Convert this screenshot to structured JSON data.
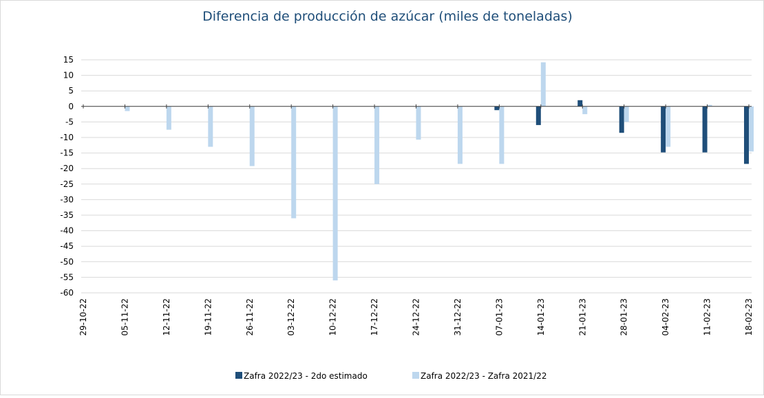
{
  "chart_data": {
    "type": "bar",
    "title": "Diferencia de producción de azúcar (miles de toneladas)",
    "categories": [
      "29-10-22",
      "05-11-22",
      "12-11-22",
      "19-11-22",
      "26-11-22",
      "03-12-22",
      "10-12-22",
      "17-12-22",
      "24-12-22",
      "31-12-22",
      "07-01-23",
      "14-01-23",
      "21-01-23",
      "28-01-23",
      "04-02-23",
      "11-02-23",
      "18-02-23"
    ],
    "series": [
      {
        "name": "Zafra 2022/23 - 2do estimado",
        "color": "#1f4e79",
        "values": [
          0,
          0,
          0,
          0,
          0,
          0,
          0,
          0,
          0,
          0,
          -1.2,
          -6,
          2,
          -8.5,
          -14.8,
          -14.8,
          -18.5
        ]
      },
      {
        "name": "Zafra 2022/23 - Zafra 2021/22",
        "color": "#bdd7ee",
        "values": [
          0,
          -1.5,
          -7.5,
          -13,
          -19.2,
          -36,
          -56,
          -25,
          -10.7,
          -18.5,
          -18.5,
          14.2,
          -2.5,
          -5,
          -13,
          0.5,
          -14.5
        ]
      }
    ],
    "ylim": [
      -60,
      15
    ],
    "yticks": [
      -60,
      -55,
      -50,
      -45,
      -40,
      -35,
      -30,
      -25,
      -20,
      -15,
      -10,
      -5,
      0,
      5,
      10,
      15
    ],
    "grid": true
  }
}
